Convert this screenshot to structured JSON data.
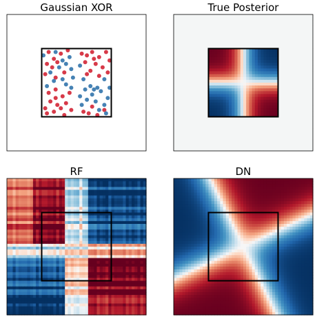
{
  "chart_data": [
    {
      "type": "scatter",
      "title": "Gaussian XOR",
      "xlim": [
        -4,
        4
      ],
      "ylim": [
        -4,
        4
      ],
      "box": [
        -2,
        2
      ],
      "series": [
        {
          "color": "#d73a49",
          "points": [
            [
              -1.6,
              1.8
            ],
            [
              -1.3,
              1.4
            ],
            [
              -1.7,
              1.1
            ],
            [
              -0.9,
              1.7
            ],
            [
              -1.1,
              1.2
            ],
            [
              -1.4,
              0.9
            ],
            [
              -0.7,
              0.6
            ],
            [
              -1.8,
              0.5
            ],
            [
              -0.5,
              1.9
            ],
            [
              -1.2,
              0.3
            ],
            [
              0.6,
              1.6
            ],
            [
              0.9,
              1.8
            ],
            [
              1.3,
              1.5
            ],
            [
              1.7,
              1.8
            ],
            [
              1.1,
              1.1
            ],
            [
              0.5,
              1.2
            ],
            [
              1.5,
              0.9
            ],
            [
              1.9,
              1.3
            ],
            [
              0.8,
              0.7
            ],
            [
              1.3,
              0.4
            ],
            [
              0.3,
              1.7
            ],
            [
              1.8,
              0.6
            ],
            [
              1.0,
              1.4
            ],
            [
              0.6,
              0.5
            ],
            [
              -1.6,
              -0.6
            ],
            [
              -1.2,
              -0.4
            ],
            [
              -0.8,
              -0.8
            ],
            [
              -1.5,
              -1.1
            ],
            [
              -1.1,
              -1.3
            ],
            [
              -0.6,
              -1.2
            ],
            [
              -1.8,
              -1.5
            ],
            [
              -1.3,
              -1.7
            ],
            [
              -0.9,
              -1.5
            ],
            [
              -0.4,
              -0.6
            ],
            [
              -1.7,
              -1.8
            ],
            [
              -0.7,
              -1.9
            ],
            [
              -1.2,
              -0.9
            ],
            [
              -0.3,
              -1.6
            ],
            [
              0.7,
              -1.8
            ],
            [
              1.2,
              -1.9
            ],
            [
              0.4,
              -1.7
            ],
            [
              1.6,
              -1.6
            ],
            [
              0.9,
              -1.4
            ]
          ]
        },
        {
          "color": "#4682b4",
          "points": [
            [
              -1.7,
              -0.2
            ],
            [
              -1.3,
              0.1
            ],
            [
              -0.8,
              0.2
            ],
            [
              -1.0,
              0.9
            ],
            [
              -0.6,
              1.1
            ],
            [
              -0.4,
              1.5
            ],
            [
              -1.5,
              0.6
            ],
            [
              -0.3,
              0.8
            ],
            [
              -1.9,
              1.6
            ],
            [
              -0.8,
              1.3
            ],
            [
              -0.2,
              0.3
            ],
            [
              -1.2,
              1.8
            ],
            [
              0.4,
              0.2
            ],
            [
              0.2,
              1.0
            ],
            [
              1.6,
              0.2
            ],
            [
              1.2,
              -0.3
            ],
            [
              0.5,
              -0.4
            ],
            [
              0.9,
              -0.7
            ],
            [
              1.4,
              -0.5
            ],
            [
              1.8,
              -0.9
            ],
            [
              0.6,
              -1.0
            ],
            [
              1.1,
              -1.1
            ],
            [
              1.6,
              -1.3
            ],
            [
              0.3,
              -1.3
            ],
            [
              1.9,
              -0.3
            ],
            [
              0.8,
              -0.2
            ],
            [
              1.3,
              -1.6
            ],
            [
              0.2,
              -0.8
            ],
            [
              1.7,
              -1.8
            ],
            [
              1.0,
              -0.4
            ],
            [
              -0.3,
              -0.3
            ],
            [
              -0.6,
              -0.1
            ]
          ]
        }
      ]
    },
    {
      "type": "heatmap",
      "title": "True Posterior",
      "xlim": [
        -4,
        4
      ],
      "ylim": [
        -4,
        4
      ],
      "box": [
        -2,
        2
      ],
      "model": "true"
    },
    {
      "type": "heatmap",
      "title": "RF",
      "xlim": [
        -4,
        4
      ],
      "ylim": [
        -4,
        4
      ],
      "box": [
        -2,
        2
      ],
      "model": "rf"
    },
    {
      "type": "heatmap",
      "title": "DN",
      "xlim": [
        -4,
        4
      ],
      "ylim": [
        -4,
        4
      ],
      "box": [
        -2,
        2
      ],
      "model": "dn"
    }
  ]
}
